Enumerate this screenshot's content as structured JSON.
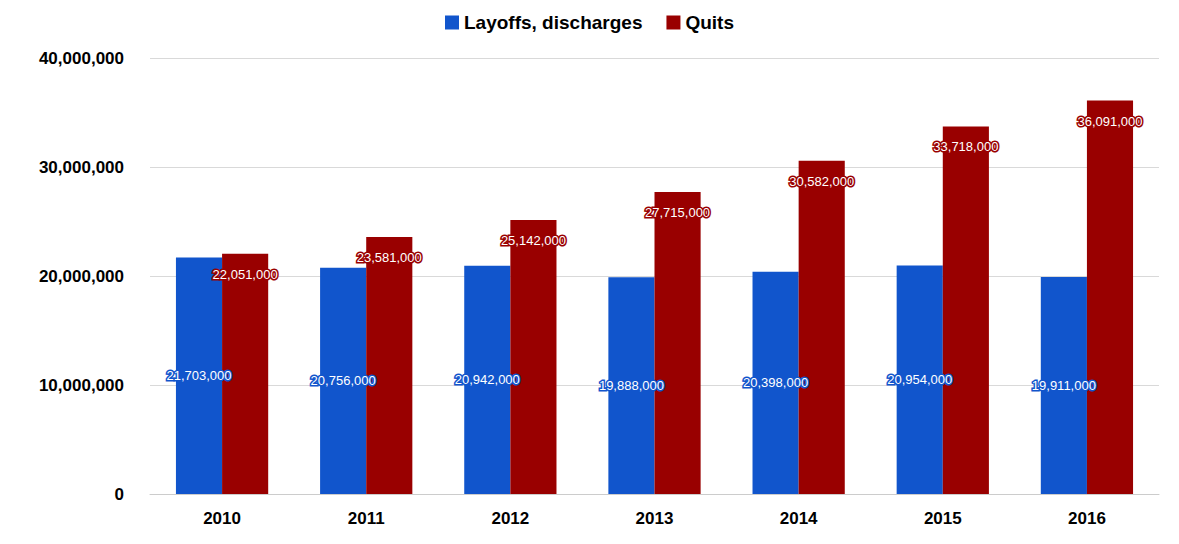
{
  "chart_data": {
    "type": "bar",
    "categories": [
      "2010",
      "2011",
      "2012",
      "2013",
      "2014",
      "2015",
      "2016"
    ],
    "series": [
      {
        "name": "Layoffs, discharges",
        "color": "#1155cc",
        "values": [
          21703000,
          20756000,
          20942000,
          19888000,
          20398000,
          20954000,
          19911000
        ],
        "value_labels": [
          "21,703,000",
          "20,756,000",
          "20,942,000",
          "19,888,000",
          "20,398,000",
          "20,954,000",
          "19,911,000"
        ]
      },
      {
        "name": "Quits",
        "color": "#990000",
        "values": [
          22051000,
          23581000,
          25142000,
          27715000,
          30582000,
          33718000,
          36091000
        ],
        "value_labels": [
          "22,051,000",
          "23,581,000",
          "25,142,000",
          "27,715,000",
          "30,582,000",
          "33,718,000",
          "36,091,000"
        ]
      }
    ],
    "ylim": [
      0,
      40000000
    ],
    "yticks": [
      0,
      {
        "value": 10000000,
        "label": "10,000,000"
      },
      {
        "value": 20000000,
        "label": "20,000,000"
      },
      {
        "value": 30000000,
        "label": "30,000,000"
      },
      {
        "value": 40000000,
        "label": "40,000,000"
      }
    ],
    "grid": true,
    "legend": "top",
    "data_labels": true
  }
}
